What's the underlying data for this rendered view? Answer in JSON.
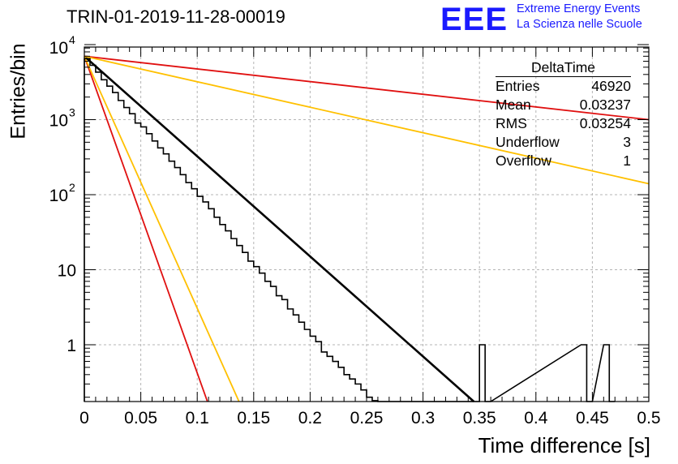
{
  "chart_data": {
    "type": "line",
    "title": "TRIN-01-2019-11-28-00019",
    "xlabel": "Time difference [s]",
    "ylabel": "Entries/bin",
    "xlim": [
      0,
      0.5
    ],
    "ylim": [
      0.15,
      11000
    ],
    "yscale": "log",
    "grid": true,
    "x_ticks": [
      "0",
      "0.05",
      "0.1",
      "0.15",
      "0.2",
      "0.25",
      "0.3",
      "0.35",
      "0.4",
      "0.45",
      "0.5"
    ],
    "y_ticks": [
      {
        "value": 1,
        "label": "1"
      },
      {
        "value": 10,
        "label": "10"
      },
      {
        "value": 100,
        "label": "10",
        "exp": "2"
      },
      {
        "value": 1000,
        "label": "10",
        "exp": "3"
      },
      {
        "value": 10000,
        "label": "10",
        "exp": "4"
      }
    ],
    "histogram": {
      "name": "DeltaTime",
      "color": "#000000",
      "bin_width": 0.005,
      "bins": [
        {
          "x": 0.0,
          "y": 6500
        },
        {
          "x": 0.005,
          "y": 5300
        },
        {
          "x": 0.01,
          "y": 4300
        },
        {
          "x": 0.015,
          "y": 3400
        },
        {
          "x": 0.02,
          "y": 2800
        },
        {
          "x": 0.025,
          "y": 2300
        },
        {
          "x": 0.03,
          "y": 1800
        },
        {
          "x": 0.035,
          "y": 1450
        },
        {
          "x": 0.04,
          "y": 1200
        },
        {
          "x": 0.045,
          "y": 900
        },
        {
          "x": 0.05,
          "y": 800
        },
        {
          "x": 0.055,
          "y": 650
        },
        {
          "x": 0.06,
          "y": 520
        },
        {
          "x": 0.065,
          "y": 420
        },
        {
          "x": 0.07,
          "y": 350
        },
        {
          "x": 0.075,
          "y": 280
        },
        {
          "x": 0.08,
          "y": 230
        },
        {
          "x": 0.085,
          "y": 185
        },
        {
          "x": 0.09,
          "y": 145
        },
        {
          "x": 0.095,
          "y": 120
        },
        {
          "x": 0.1,
          "y": 95
        },
        {
          "x": 0.105,
          "y": 80
        },
        {
          "x": 0.11,
          "y": 65
        },
        {
          "x": 0.115,
          "y": 50
        },
        {
          "x": 0.12,
          "y": 40
        },
        {
          "x": 0.125,
          "y": 33
        },
        {
          "x": 0.13,
          "y": 26
        },
        {
          "x": 0.135,
          "y": 21
        },
        {
          "x": 0.14,
          "y": 17
        },
        {
          "x": 0.145,
          "y": 13
        },
        {
          "x": 0.15,
          "y": 11
        },
        {
          "x": 0.155,
          "y": 9
        },
        {
          "x": 0.16,
          "y": 7
        },
        {
          "x": 0.165,
          "y": 6
        },
        {
          "x": 0.17,
          "y": 4.5
        },
        {
          "x": 0.175,
          "y": 4
        },
        {
          "x": 0.18,
          "y": 3
        },
        {
          "x": 0.185,
          "y": 2.5
        },
        {
          "x": 0.19,
          "y": 2
        },
        {
          "x": 0.195,
          "y": 1.6
        },
        {
          "x": 0.2,
          "y": 1.3
        },
        {
          "x": 0.205,
          "y": 1.1
        },
        {
          "x": 0.21,
          "y": 0.8
        },
        {
          "x": 0.215,
          "y": 0.7
        },
        {
          "x": 0.22,
          "y": 0.6
        },
        {
          "x": 0.225,
          "y": 0.5
        },
        {
          "x": 0.23,
          "y": 0.4
        },
        {
          "x": 0.235,
          "y": 0.35
        },
        {
          "x": 0.24,
          "y": 0.3
        },
        {
          "x": 0.245,
          "y": 0.25
        },
        {
          "x": 0.25,
          "y": 0.2
        },
        {
          "x": 0.255,
          "y": 0.18
        },
        {
          "x": 0.26,
          "y": 0.15
        },
        {
          "x": 0.265,
          "y": 0
        },
        {
          "x": 0.27,
          "y": 0
        },
        {
          "x": 0.275,
          "y": 0
        },
        {
          "x": 0.28,
          "y": 0
        },
        {
          "x": 0.285,
          "y": 0
        },
        {
          "x": 0.29,
          "y": 0
        },
        {
          "x": 0.295,
          "y": 0
        },
        {
          "x": 0.3,
          "y": 0
        },
        {
          "x": 0.305,
          "y": 0
        },
        {
          "x": 0.31,
          "y": 0
        },
        {
          "x": 0.315,
          "y": 0
        },
        {
          "x": 0.32,
          "y": 0
        },
        {
          "x": 0.325,
          "y": 0
        },
        {
          "x": 0.33,
          "y": 0
        },
        {
          "x": 0.335,
          "y": 0
        },
        {
          "x": 0.34,
          "y": 0
        },
        {
          "x": 0.345,
          "y": 0
        },
        {
          "x": 0.35,
          "y": 1
        },
        {
          "x": 0.355,
          "y": 0
        },
        {
          "x": 0.44,
          "y": 1
        },
        {
          "x": 0.445,
          "y": 0
        },
        {
          "x": 0.46,
          "y": 1
        },
        {
          "x": 0.465,
          "y": 0
        }
      ]
    },
    "fit_lines": [
      {
        "name": "fit",
        "color": "#000000",
        "points": [
          [
            0,
            7000
          ],
          [
            0.345,
            0.16
          ]
        ]
      },
      {
        "name": "red-slow",
        "color": "#e01010",
        "points": [
          [
            0,
            7000
          ],
          [
            0.5,
            1000
          ]
        ]
      },
      {
        "name": "orange-slow",
        "color": "#ffc000",
        "points": [
          [
            0,
            7000
          ],
          [
            0.5,
            140
          ]
        ]
      },
      {
        "name": "red-fast",
        "color": "#e01010",
        "points": [
          [
            0,
            7000
          ],
          [
            0.109,
            0.16
          ]
        ]
      },
      {
        "name": "orange-fast",
        "color": "#ffc000",
        "points": [
          [
            0,
            7000
          ],
          [
            0.137,
            0.16
          ]
        ]
      }
    ],
    "stats_box": {
      "name": "DeltaTime",
      "rows": [
        {
          "label": "Entries",
          "value": "46920"
        },
        {
          "label": "Mean",
          "value": "0.03237"
        },
        {
          "label": "RMS",
          "value": "0.03254"
        },
        {
          "label": "Underflow",
          "value": "3"
        },
        {
          "label": "Overflow",
          "value": "1"
        }
      ]
    }
  },
  "logo": {
    "mark": "EEE",
    "line1": "Extreme Energy Events",
    "line2": "La Scienza nelle Scuole"
  }
}
